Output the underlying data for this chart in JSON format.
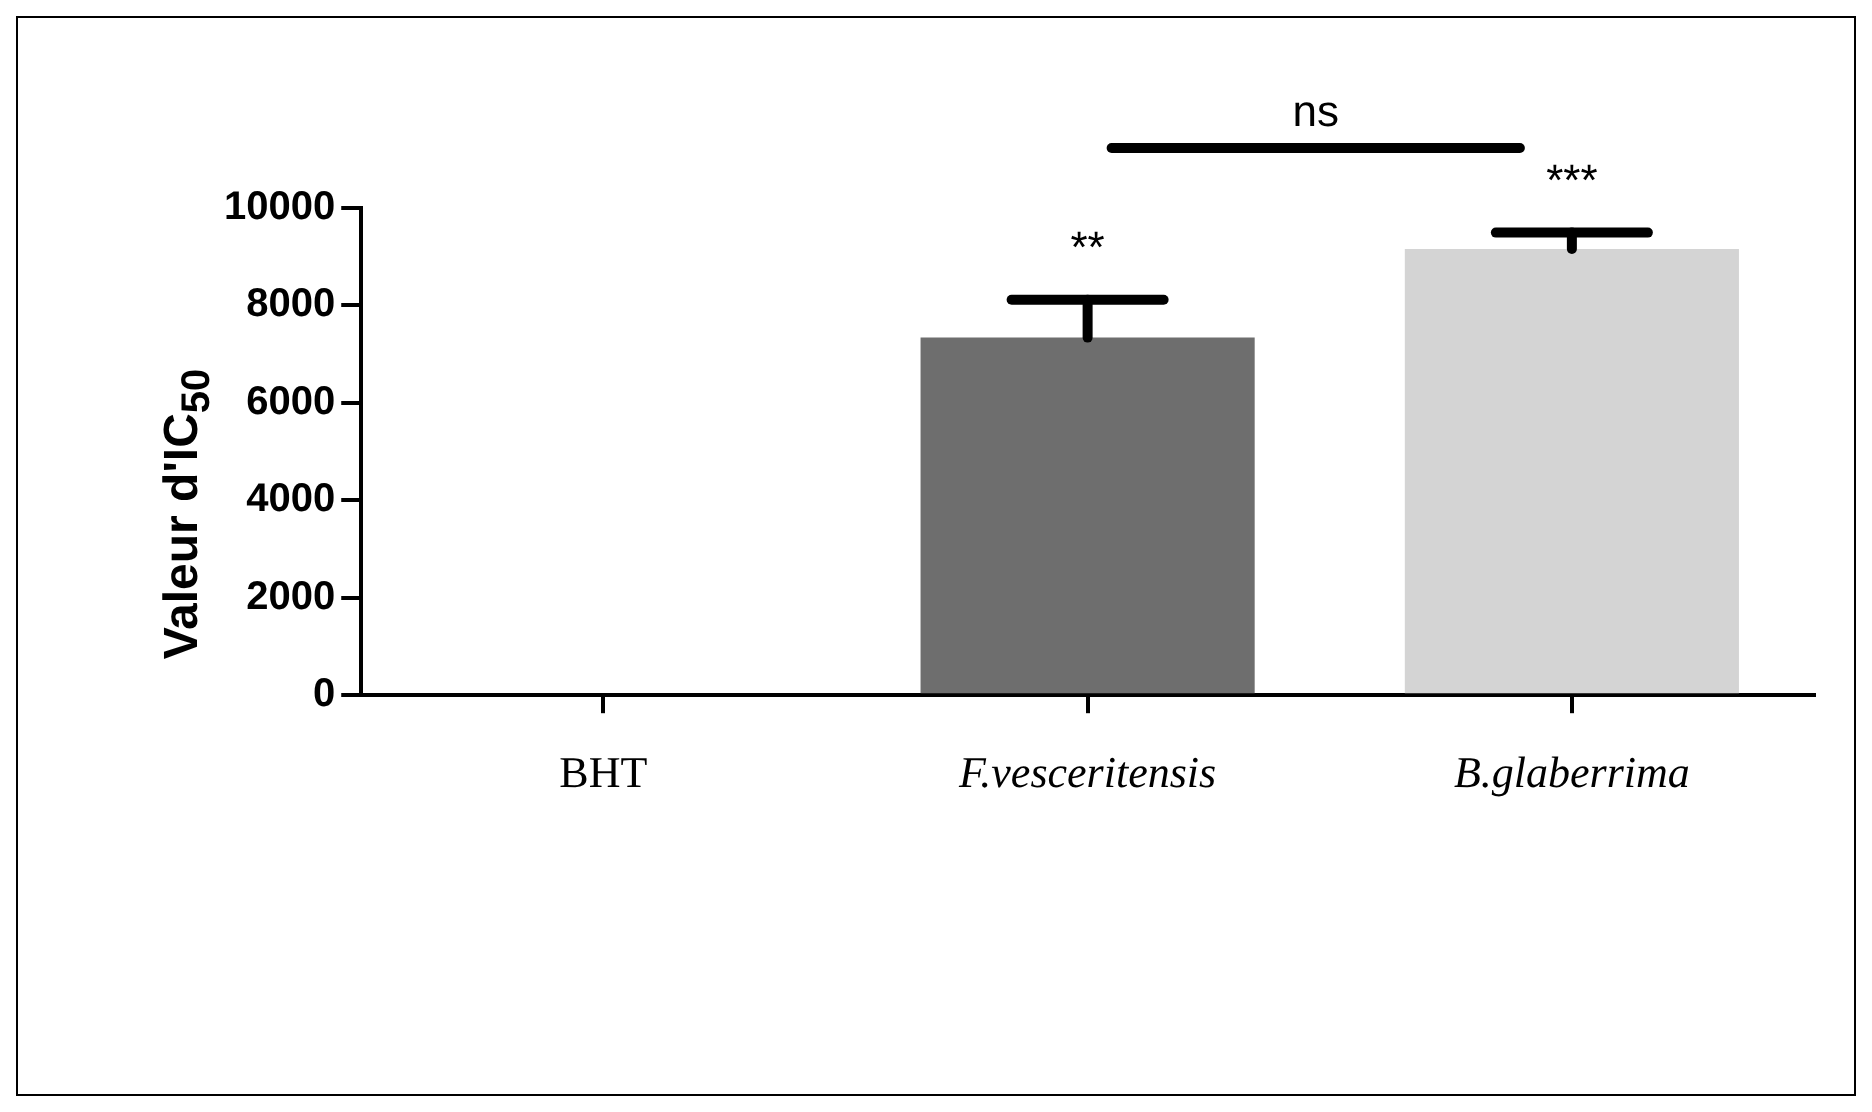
{
  "chart_data": {
    "type": "bar",
    "ylabel": "Valeur d'IC$_{50}$",
    "categories": [
      "BHT",
      "F.vesceritensis",
      "B.glaberrima"
    ],
    "values": [
      20,
      7340,
      9160
    ],
    "errors": [
      null,
      775,
      335
    ],
    "colors": [
      "#000000",
      "#6e6e6e",
      "#d4d4d4"
    ],
    "ylim": [
      0,
      10000
    ],
    "yticks": [
      0,
      2000,
      4000,
      6000,
      8000,
      10000
    ],
    "grid": false,
    "legend": false,
    "annotations": [
      "**",
      "***",
      "ns"
    ]
  }
}
